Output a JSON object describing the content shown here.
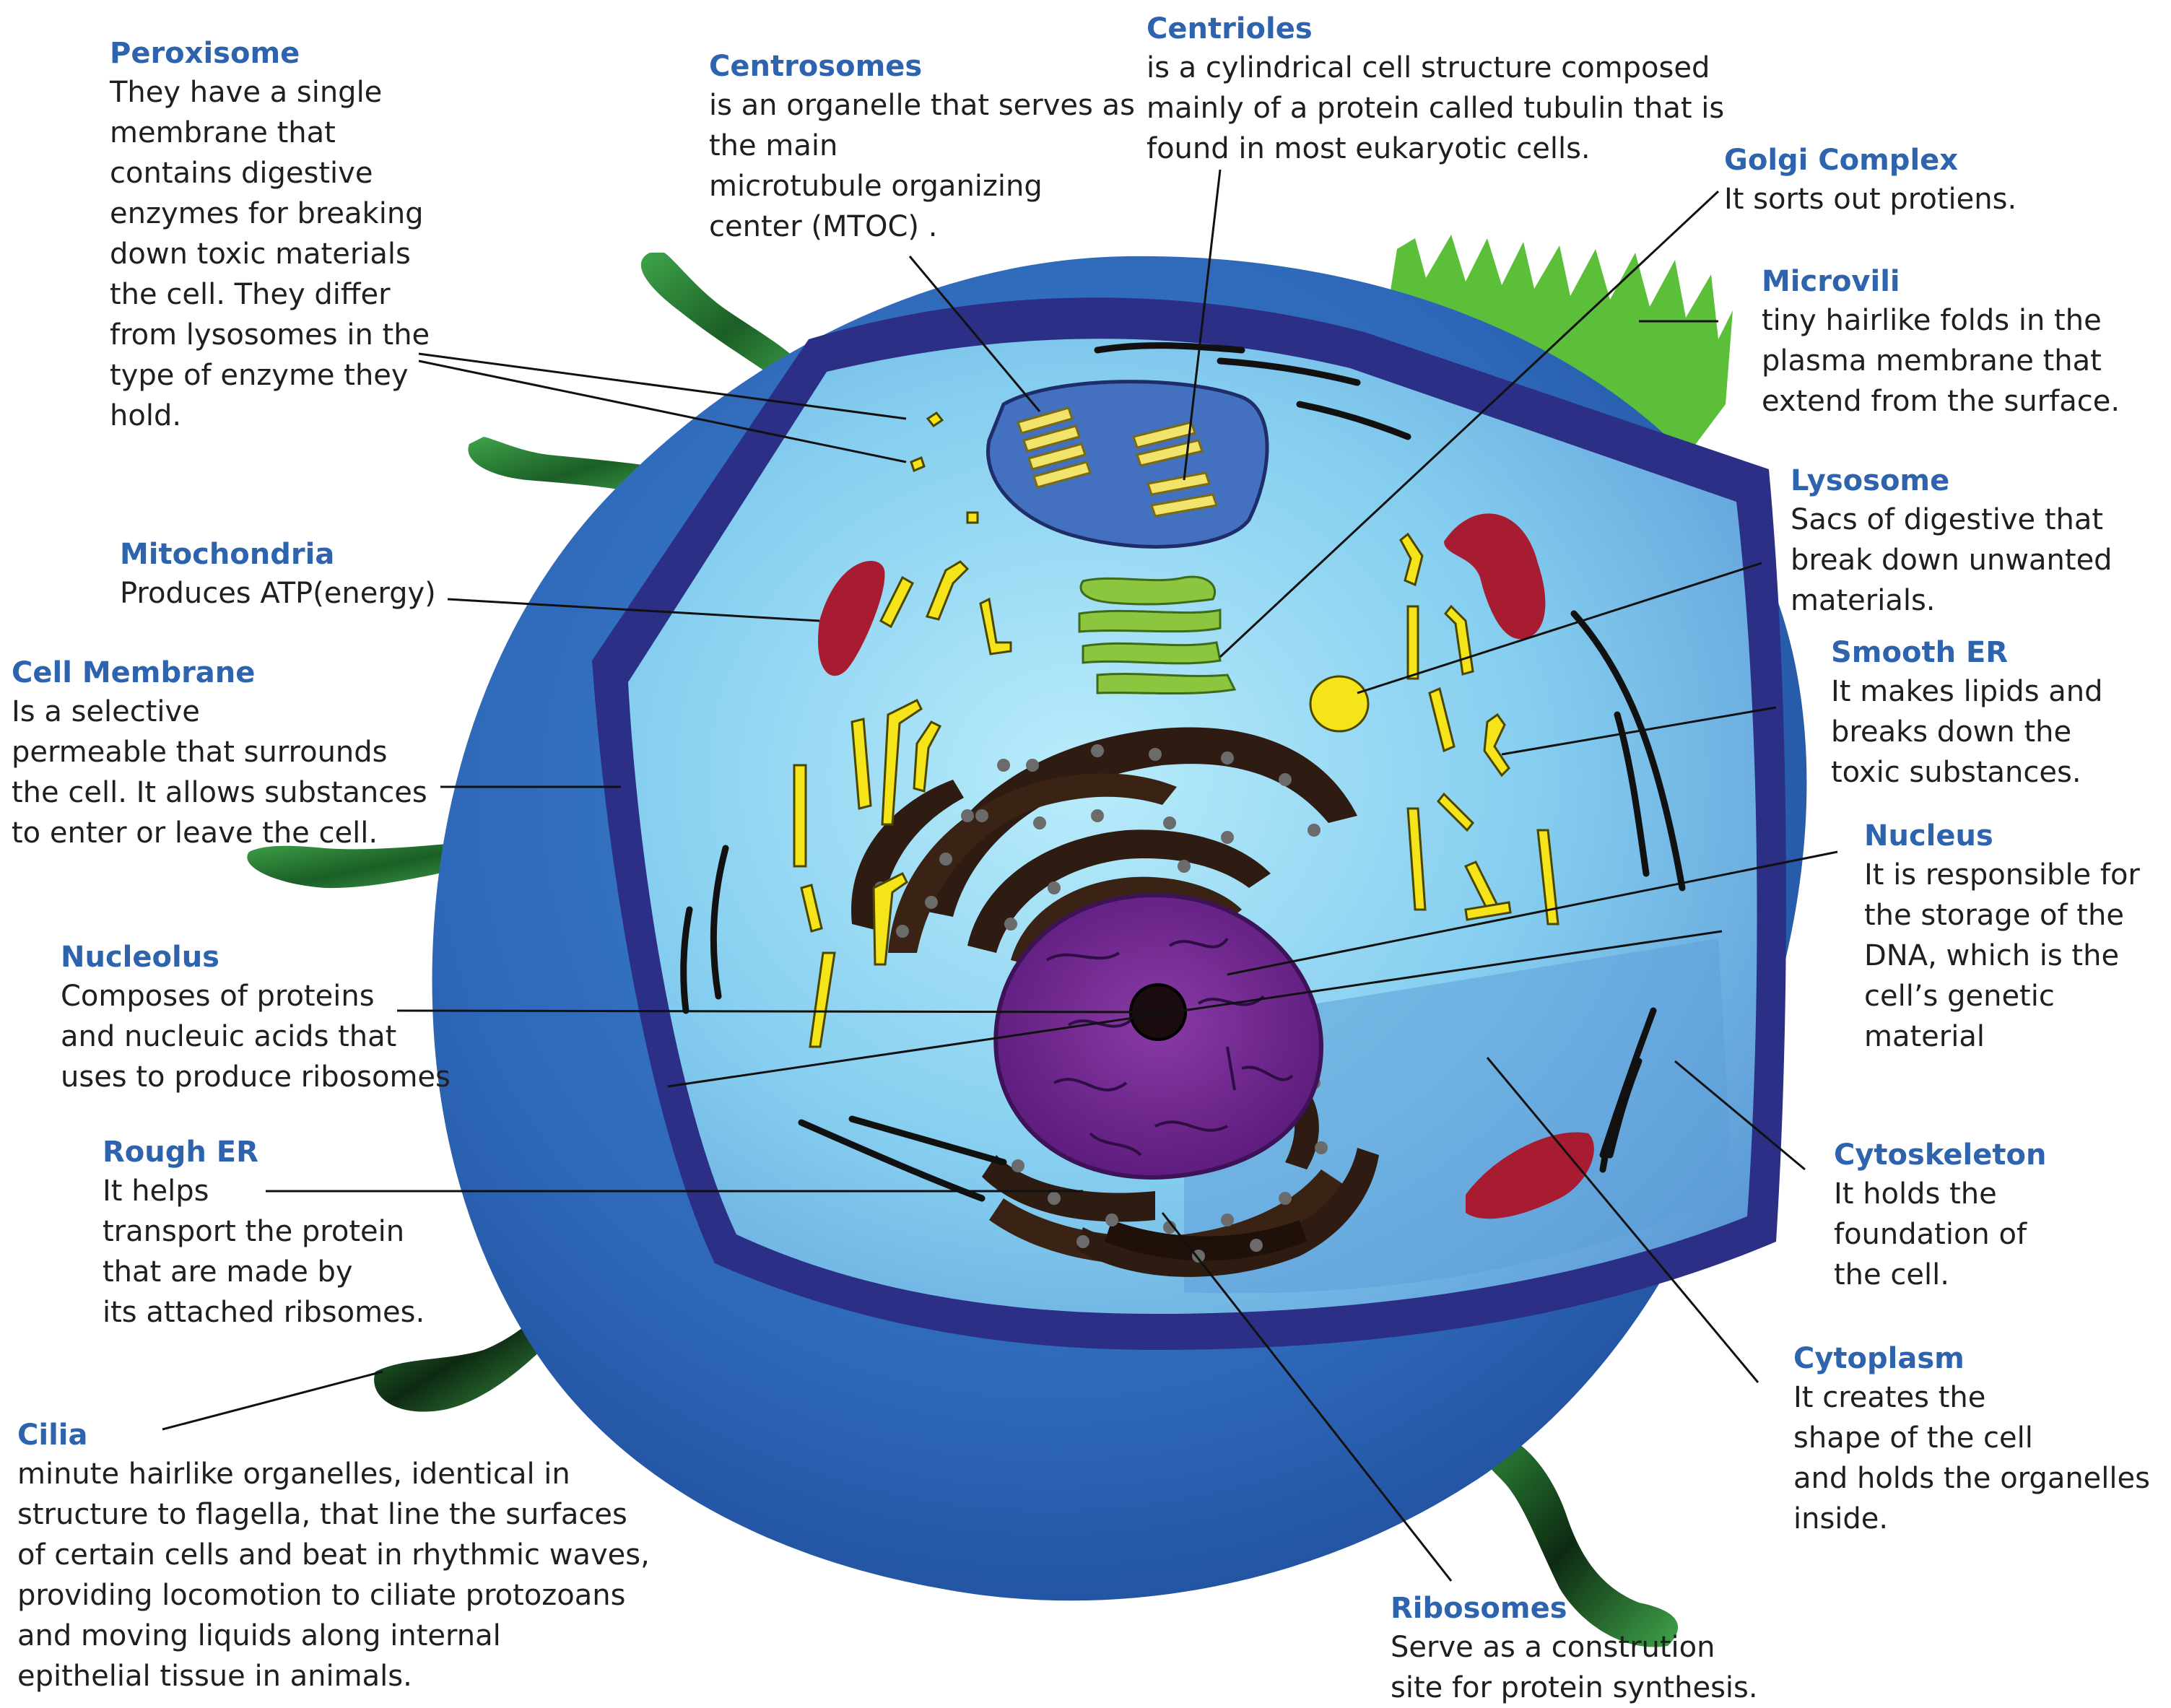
{
  "labels": {
    "peroxisome": {
      "title": "Peroxisome",
      "text": "They have a single\nmembrane that\ncontains digestive\nenzymes for breaking\ndown toxic materials\nthe cell. They differ\nfrom lysosomes in the\ntype of enzyme they\nhold."
    },
    "centrosomes": {
      "title": "Centrosomes",
      "text": "is an organelle that serves as\nthe main\nmicrotubule organizing\ncenter (MTOC) ."
    },
    "centrioles": {
      "title": "Centrioles",
      "text": "is a cylindrical cell structure composed\nmainly of a protein called tubulin that is\nfound in most eukaryotic cells."
    },
    "golgi": {
      "title": "Golgi Complex",
      "text": "It sorts out protiens."
    },
    "microvili": {
      "title": "Microvili",
      "text": "tiny hairlike folds in the\nplasma membrane that\nextend from the surface."
    },
    "lysosome": {
      "title": "Lysosome",
      "text": "Sacs of digestive that\nbreak down unwanted\nmaterials."
    },
    "smooth_er": {
      "title": "Smooth ER",
      "text": "It makes lipids and\nbreaks down the\ntoxic substances."
    },
    "nucleus": {
      "title": "Nucleus",
      "text": "It is responsible for\nthe storage of the\nDNA, which is the\ncell’s genetic material"
    },
    "mitochondria": {
      "title": "Mitochondria",
      "text": "Produces ATP(energy)"
    },
    "cell_membrane": {
      "title": "Cell Membrane",
      "text": "Is a selective\npermeable that surrounds\nthe cell. It allows substances\nto enter or leave the cell."
    },
    "nucleolus": {
      "title": "Nucleolus",
      "text": "Composes of proteins\nand nucleuic acids that\nuses to produce ribosomes"
    },
    "rough_er": {
      "title": "Rough ER",
      "text": "It helps\ntransport the protein\nthat are made by\nits attached ribsomes."
    },
    "cytoskeleton": {
      "title": "Cytoskeleton",
      "text": "It holds the\nfoundation of\nthe cell."
    },
    "cytoplasm": {
      "title": "Cytoplasm",
      "text": "It creates the\nshape of the cell\nand holds the organelles\ninside."
    },
    "cilia": {
      "title": "Cilia",
      "text": "minute hairlike organelles, identical in\nstructure to flagella, that line the surfaces\nof certain cells and beat in rhythmic waves,\nproviding locomotion to ciliate protozoans\nand moving liquids along internal\nepithelial tissue in animals."
    },
    "ribosomes": {
      "title": "Ribosomes",
      "text": "Serve as a constrution\nsite for protein synthesis."
    }
  },
  "colors": {
    "title_blue": "#2e63ad",
    "outer_membrane": "#2d62b4",
    "inner_rim": "#2b2f86",
    "cytoplasm": "#7ec8ec",
    "nucleus": "#6a1f86",
    "mitochondria": "#a81c32",
    "peroxisome": "#f5e41a",
    "golgi": "#8cc63f",
    "microvilli": "#5cbf3a",
    "cilia": "#2d8a3a",
    "rough_er": "#2e1b12"
  }
}
